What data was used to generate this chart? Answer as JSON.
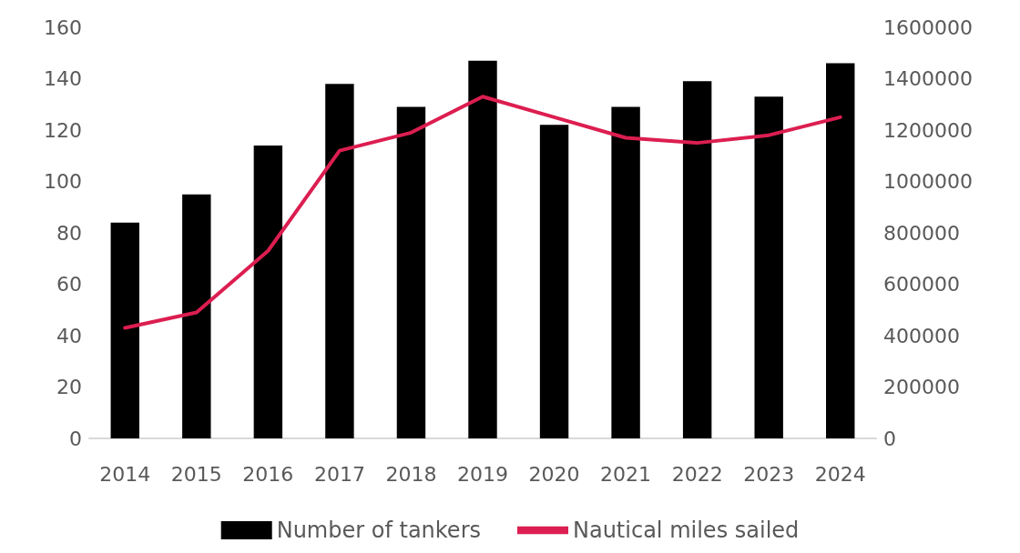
{
  "chart_data": {
    "type": "bar",
    "categories": [
      "2014",
      "2015",
      "2016",
      "2017",
      "2018",
      "2019",
      "2020",
      "2021",
      "2022",
      "2023",
      "2024"
    ],
    "series": [
      {
        "name": "Number of tankers",
        "color": "#000000",
        "values": [
          84,
          95,
          114,
          138,
          129,
          147,
          122,
          129,
          139,
          133,
          146
        ]
      },
      {
        "name": "Nautical miles sailed",
        "type": "line",
        "axis": "y2",
        "color": "#dc1e50",
        "values": [
          430000,
          490000,
          730000,
          1120000,
          1190000,
          1330000,
          1250000,
          1170000,
          1150000,
          1180000,
          1250000
        ]
      }
    ],
    "ylim": [
      0,
      160
    ],
    "yticks": [
      0,
      20,
      40,
      60,
      80,
      100,
      120,
      140,
      160
    ],
    "y2lim": [
      0,
      1600000
    ],
    "y2ticks": [
      0,
      200000,
      400000,
      600000,
      800000,
      1000000,
      1200000,
      1400000,
      1600000
    ],
    "grid": false,
    "legend": "bottom",
    "marker": "none",
    "line_style": "solid"
  }
}
